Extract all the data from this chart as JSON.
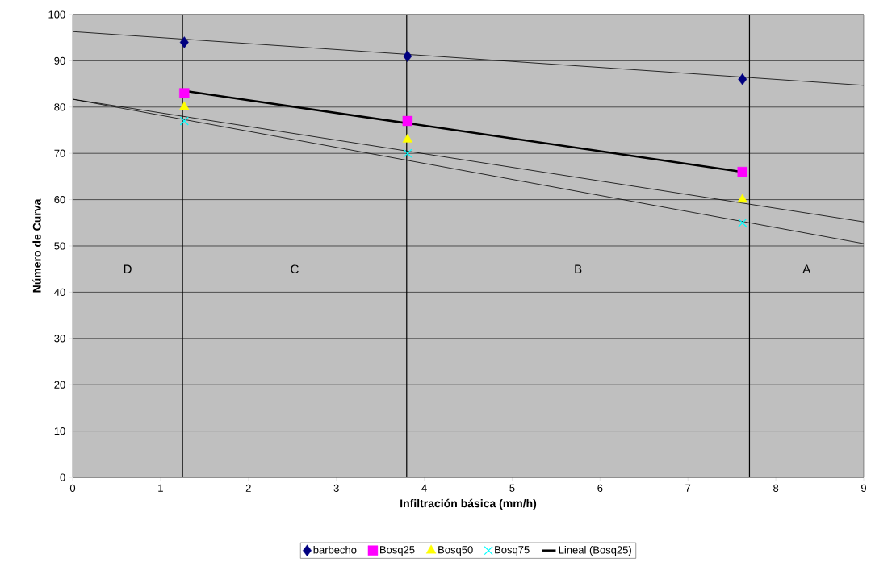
{
  "chart_data": {
    "type": "scatter",
    "xlabel": "Infiltración básica (mm/h)",
    "ylabel": "Número de Curva",
    "xlim": [
      0,
      9
    ],
    "xticks": [
      0,
      1,
      2,
      3,
      4,
      5,
      6,
      7,
      8,
      9
    ],
    "ylim": [
      0,
      100
    ],
    "yticks": [
      0,
      10,
      20,
      30,
      40,
      50,
      60,
      70,
      80,
      90,
      100
    ],
    "grid": "y",
    "legend": "bottom",
    "series": [
      {
        "name": "barbecho",
        "marker": "diamond",
        "color": "#000080",
        "x": [
          1.27,
          3.81,
          7.62
        ],
        "values": [
          94,
          91,
          86
        ]
      },
      {
        "name": "Bosq25",
        "marker": "square",
        "color": "#ff00ff",
        "x": [
          1.27,
          3.81,
          7.62
        ],
        "values": [
          83,
          77,
          66
        ]
      },
      {
        "name": "Bosq50",
        "marker": "triangle",
        "color": "#ffff00",
        "x": [
          1.27,
          3.81,
          7.62
        ],
        "values": [
          80,
          73,
          60
        ]
      },
      {
        "name": "Bosq75",
        "marker": "cross",
        "color": "#00ffff",
        "x": [
          1.27,
          3.81,
          7.62
        ],
        "values": [
          77,
          70,
          55
        ]
      },
      {
        "name": "Lineal (Bosq25)",
        "type": "line",
        "marker": "none",
        "color": "#000000",
        "x": [
          1.27,
          7.62
        ],
        "values": [
          83.5,
          66
        ]
      },
      {
        "type": "line",
        "marker": "none",
        "color": "#000000",
        "x": [
          0,
          9
        ],
        "values": [
          96.3,
          84.7
        ]
      },
      {
        "type": "line",
        "marker": "none",
        "color": "#000000",
        "x": [
          0,
          9
        ],
        "values": [
          81.7,
          55.2
        ]
      },
      {
        "type": "line",
        "marker": "none",
        "color": "#000000",
        "x": [
          0,
          9
        ],
        "values": [
          81.7,
          50.5
        ]
      }
    ],
    "ref_lines": [
      {
        "axis": "x",
        "value": 1.25,
        "color": "#000000"
      },
      {
        "axis": "x",
        "value": 3.8,
        "color": "#000000"
      },
      {
        "axis": "x",
        "value": 7.7,
        "color": "#000000"
      }
    ],
    "annotations": [
      "D",
      "C",
      "B",
      "A"
    ]
  }
}
